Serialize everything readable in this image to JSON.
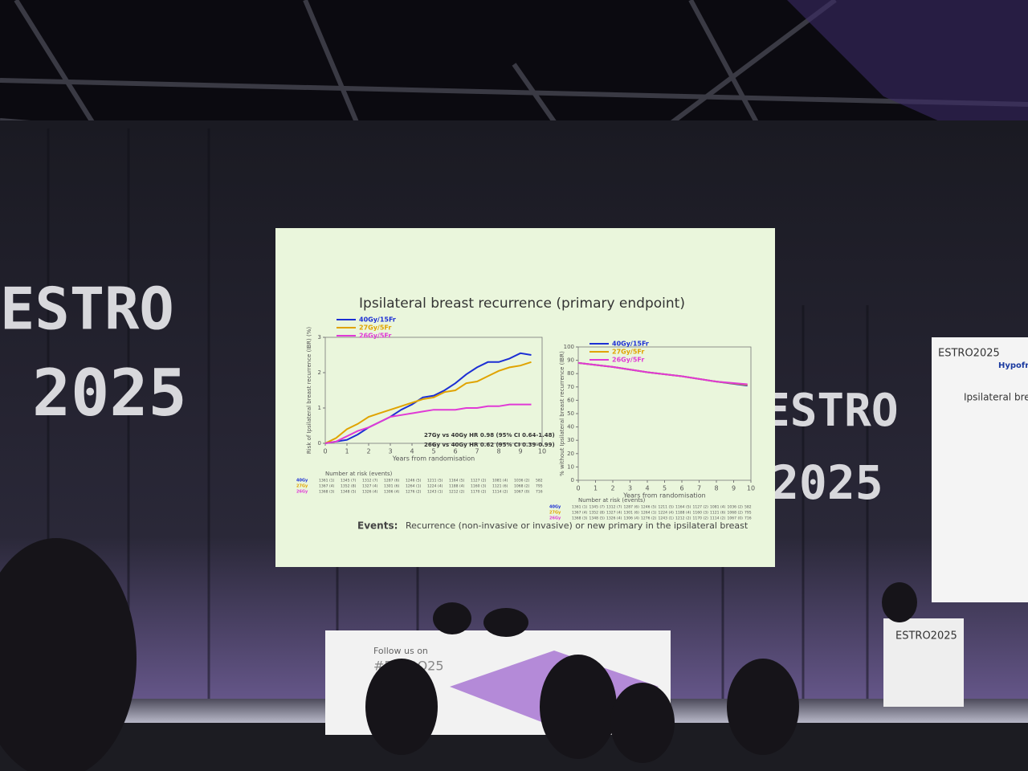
{
  "scene": {
    "left_banner": [
      "ESTRO",
      "2025"
    ],
    "right_banner": [
      "ESTRO",
      "2025"
    ],
    "podium": "ESTRO2025",
    "desk": [
      "Follow us on",
      "#ESTRO25"
    ],
    "side_screen": [
      "ESTRO2025",
      "Hypofractio",
      "Ipsilateral breast r"
    ]
  },
  "slide": {
    "title": "Ipsilateral breast recurrence (primary endpoint)",
    "events_label": "Events:",
    "events_text": "Recurrence (non-invasive or invasive) or new primary in the ipsilateral breast"
  },
  "chart_data": [
    {
      "type": "line",
      "y_label": "Risk of Ipsilateral breast recurrence (IBR) (%)",
      "x_label": "Years from randomisation",
      "x": [
        0,
        0.5,
        1,
        1.5,
        2,
        2.5,
        3,
        3.5,
        4,
        4.5,
        5,
        5.5,
        6,
        6.5,
        7,
        7.5,
        8,
        8.5,
        9,
        9.5
      ],
      "xlim": [
        0,
        10
      ],
      "xticks": [
        0,
        1,
        2,
        3,
        4,
        5,
        6,
        7,
        8,
        9,
        10
      ],
      "ylim": [
        0,
        3
      ],
      "yticks": [
        0,
        1,
        2,
        3
      ],
      "legend": "upper left",
      "series": [
        {
          "name": "40Gy/15Fr",
          "color": "#1c2fd4",
          "values": [
            0,
            0.05,
            0.1,
            0.25,
            0.45,
            0.6,
            0.75,
            0.95,
            1.1,
            1.3,
            1.35,
            1.5,
            1.7,
            1.95,
            2.15,
            2.3,
            2.3,
            2.4,
            2.55,
            2.5
          ]
        },
        {
          "name": "27Gy/5Fr",
          "color": "#e0a300",
          "values": [
            0,
            0.15,
            0.4,
            0.55,
            0.75,
            0.85,
            0.95,
            1.05,
            1.15,
            1.25,
            1.3,
            1.45,
            1.5,
            1.7,
            1.75,
            1.9,
            2.05,
            2.15,
            2.2,
            2.3
          ]
        },
        {
          "name": "26Gy/5Fr",
          "color": "#e03ad6",
          "values": [
            0,
            0.05,
            0.2,
            0.35,
            0.45,
            0.6,
            0.75,
            0.8,
            0.85,
            0.9,
            0.95,
            0.95,
            0.95,
            1.0,
            1.0,
            1.05,
            1.05,
            1.1,
            1.1,
            1.1
          ]
        }
      ],
      "annotations": [
        "27Gy vs 40Gy HR 0.98 (95% CI 0.64-1.48)",
        "26Gy vs 40Gy HR 0.62 (95% CI 0.39-0.99)"
      ],
      "risk_table": {
        "title": "Number at risk (events)",
        "rows": [
          {
            "name": "40Gy",
            "counts": [
              1361,
              1345,
              1312,
              1287,
              1246,
              1211,
              1164,
              1127,
              1081,
              1036,
              582
            ],
            "events": [
              "(1)",
              "(7)",
              "(7)",
              "(6)",
              "(5)",
              "(5)",
              "(5)",
              "(2)",
              "(4)",
              "(2)"
            ]
          },
          {
            "name": "27Gy",
            "counts": [
              1367,
              1352,
              1327,
              1301,
              1264,
              1224,
              1188,
              1160,
              1121,
              1068,
              795
            ],
            "events": [
              "(4)",
              "(8)",
              "(4)",
              "(6)",
              "(1)",
              "(4)",
              "(4)",
              "(3)",
              "(6)",
              "(2)"
            ]
          },
          {
            "name": "26Gy",
            "counts": [
              1368,
              1348,
              1326,
              1306,
              1276,
              1243,
              1212,
              1170,
              1114,
              1067,
              716
            ],
            "events": [
              "(3)",
              "(5)",
              "(4)",
              "(4)",
              "(2)",
              "(1)",
              "(2)",
              "(2)",
              "(2)",
              "(0)"
            ]
          }
        ]
      }
    },
    {
      "type": "line",
      "y_label": "% without Ipsilateral breast recurrence (IBR)",
      "x_label": "Years from randomisation",
      "x": [
        0,
        2,
        4,
        6,
        8,
        9.8
      ],
      "xlim": [
        0,
        10
      ],
      "xticks": [
        0,
        1,
        2,
        3,
        4,
        5,
        6,
        7,
        8,
        9,
        10
      ],
      "ylim": [
        0,
        100
      ],
      "yticks": [
        0,
        10,
        20,
        30,
        40,
        50,
        60,
        70,
        80,
        90,
        100
      ],
      "legend": "upper left",
      "series": [
        {
          "name": "40Gy/15Fr",
          "color": "#1c2fd4",
          "values": [
            88,
            85,
            81,
            78,
            74,
            71
          ]
        },
        {
          "name": "27Gy/5Fr",
          "color": "#e0a300",
          "values": [
            88,
            85,
            81,
            78,
            74,
            71.5
          ]
        },
        {
          "name": "26Gy/5Fr",
          "color": "#e03ad6",
          "values": [
            88,
            85,
            81,
            78,
            74,
            72
          ]
        }
      ],
      "risk_table": {
        "title": "Number at risk (events)",
        "rows": [
          {
            "name": "40Gy",
            "counts": [
              1361,
              1345,
              1312,
              1287,
              1246,
              1211,
              1164,
              1127,
              1081,
              1036,
              582
            ],
            "events": [
              "(1)",
              "(7)",
              "(7)",
              "(6)",
              "(5)",
              "(5)",
              "(5)",
              "(2)",
              "(4)",
              "(2)"
            ]
          },
          {
            "name": "27Gy",
            "counts": [
              1367,
              1352,
              1327,
              1301,
              1264,
              1224,
              1188,
              1160,
              1121,
              1068,
              795
            ],
            "events": [
              "(4)",
              "(8)",
              "(4)",
              "(6)",
              "(1)",
              "(4)",
              "(4)",
              "(3)",
              "(6)",
              "(2)"
            ]
          },
          {
            "name": "26Gy",
            "counts": [
              1368,
              1348,
              1326,
              1306,
              1276,
              1243,
              1212,
              1170,
              1114,
              1067,
              716
            ],
            "events": [
              "(3)",
              "(5)",
              "(4)",
              "(4)",
              "(2)",
              "(1)",
              "(2)",
              "(2)",
              "(2)",
              "(0)"
            ]
          }
        ]
      }
    }
  ]
}
